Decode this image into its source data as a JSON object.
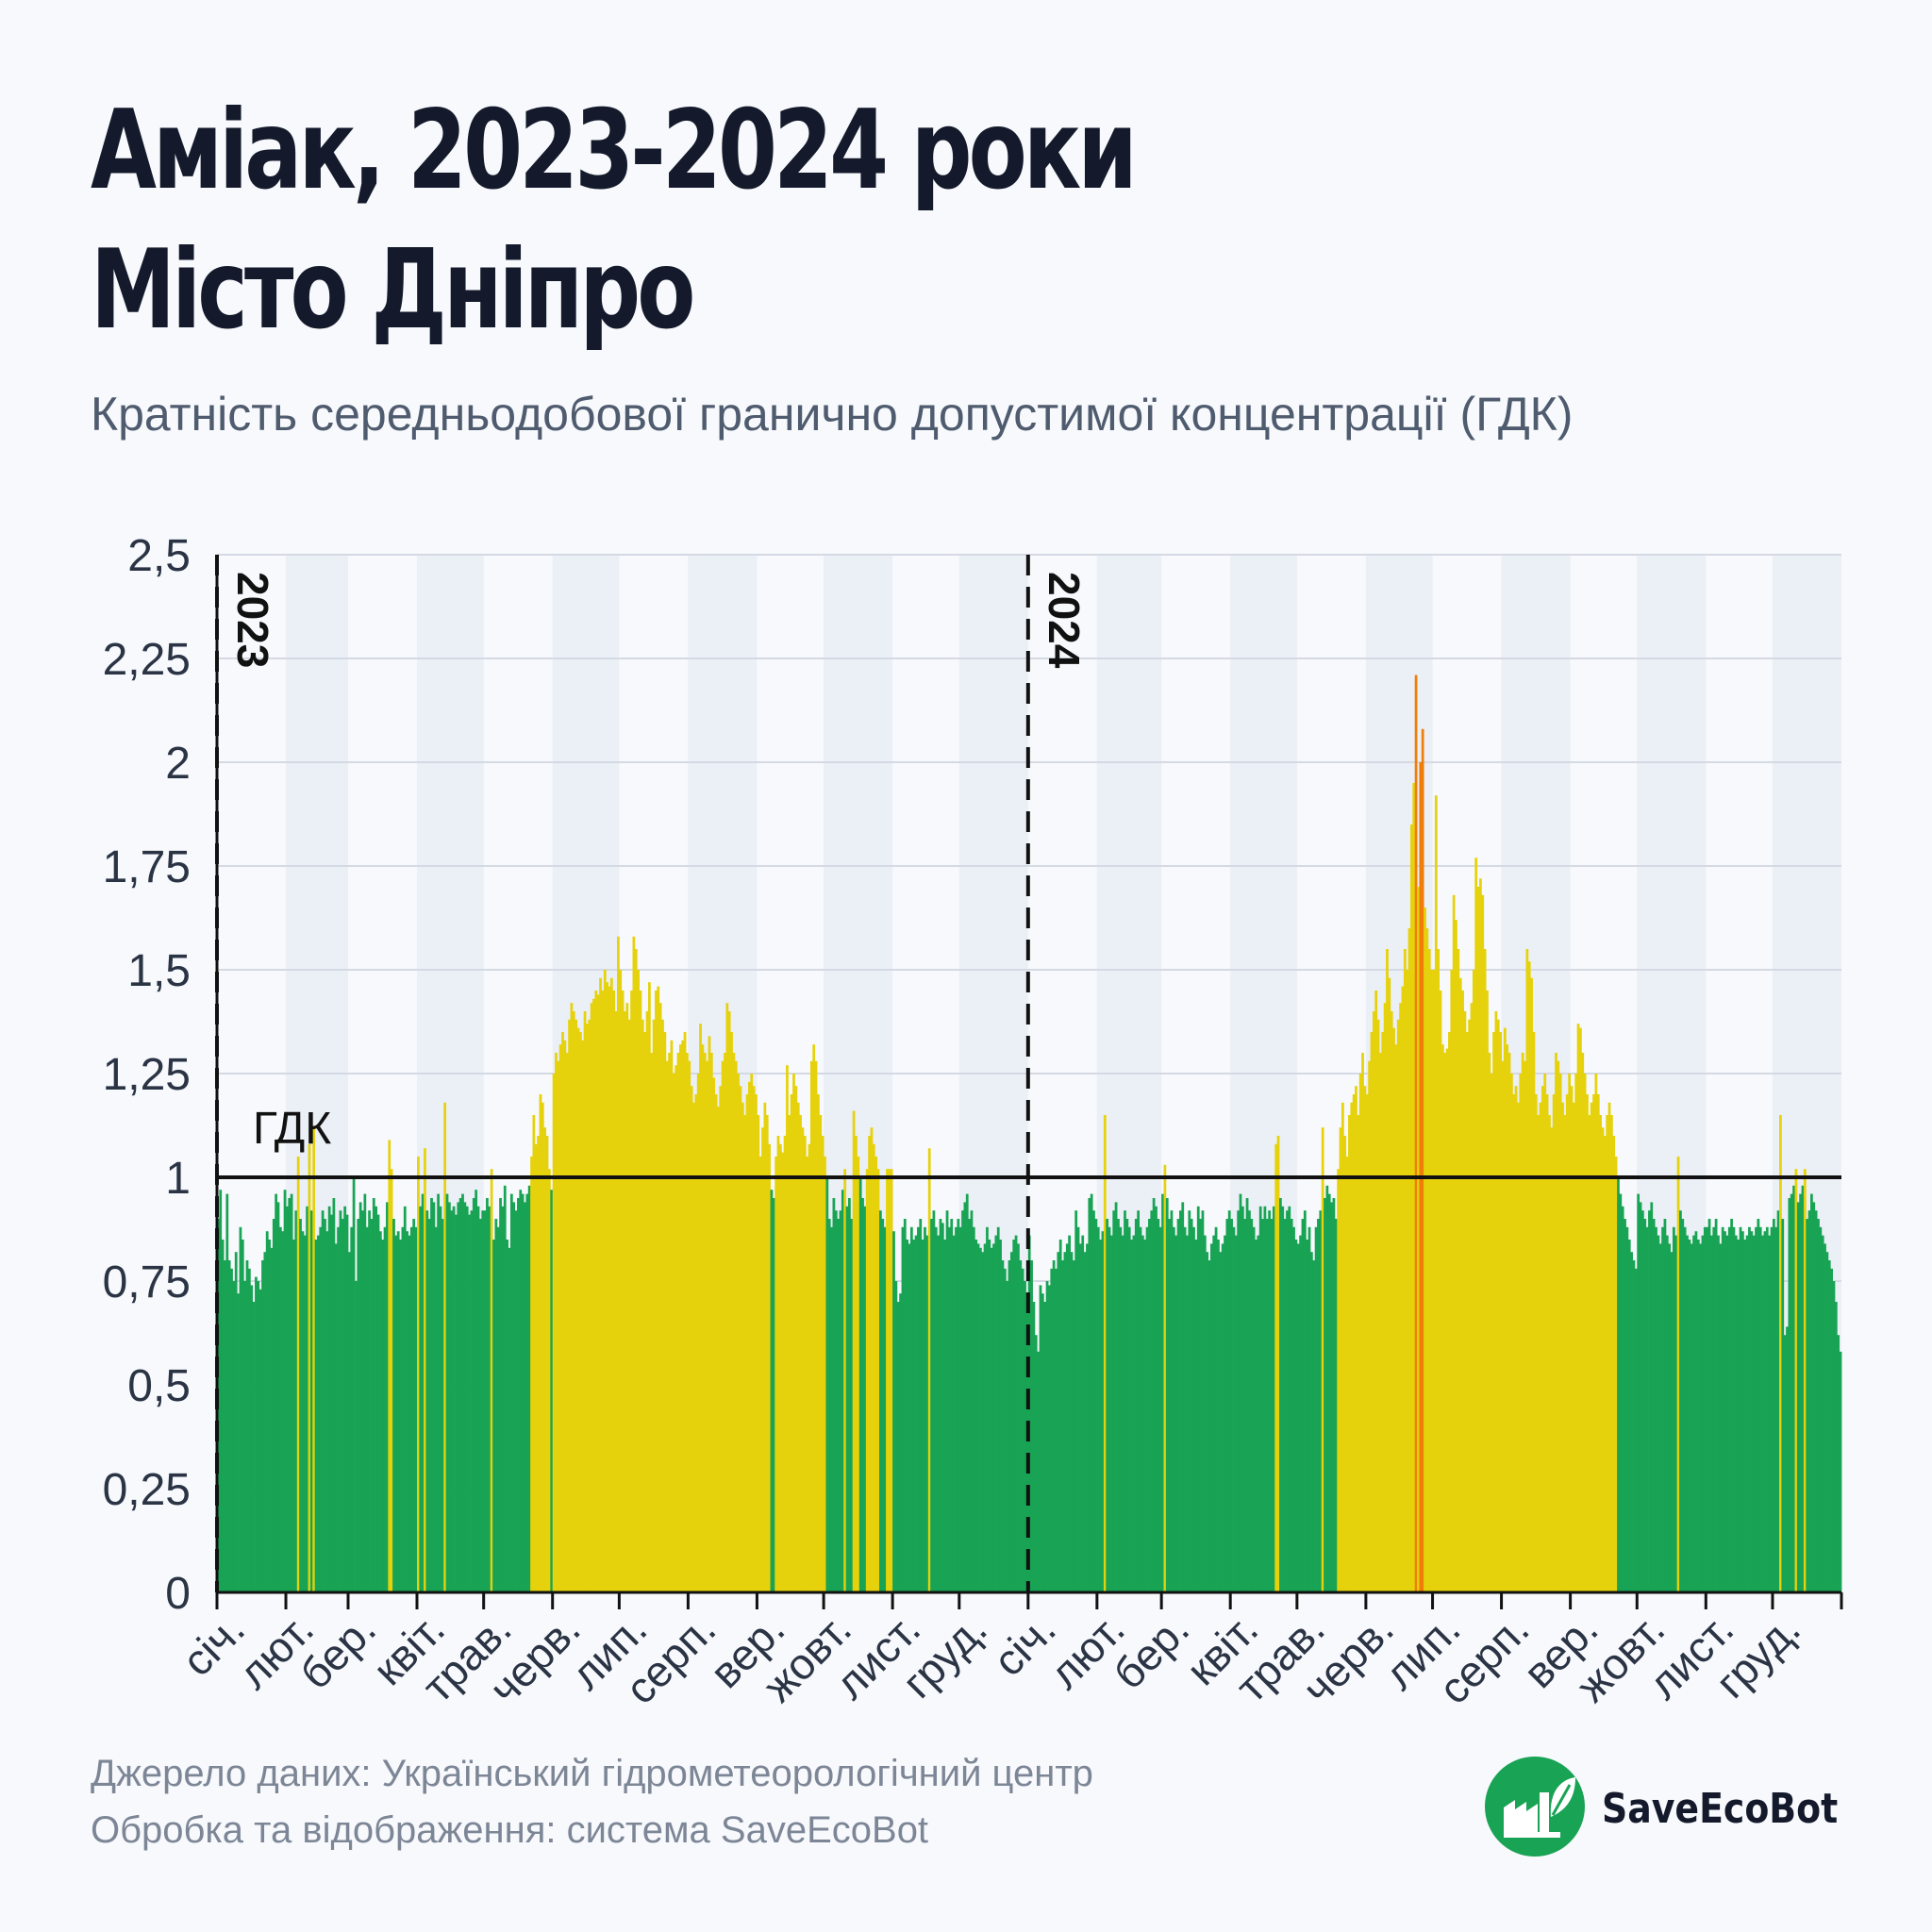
{
  "header": {
    "title_line1": "Аміак, 2023-2024 роки",
    "title_line2": "Місто Дніпро",
    "subtitle": "Кратність середньодобової гранично допустимої концентрації (ГДК)"
  },
  "footer": {
    "source": "Джерело даних: Український гідрометеорологічний центр",
    "processing": "Обробка та відображення: система SaveEcoBot"
  },
  "logo": {
    "text_part1": "Save",
    "text_part2": "EcoBot",
    "icon": "factory-leaf-icon"
  },
  "colors": {
    "below_limit": "#19a354",
    "above_limit": "#e6d20c",
    "high": "#f07d0a",
    "limit_line": "#111111",
    "year_divider": "#111111",
    "band_light": "#ebeff6",
    "grid": "#d4d9e3",
    "axis_text": "#2b3445",
    "logo_green": "#19a354"
  },
  "chart_data": {
    "type": "bar",
    "title": "Аміак, 2023-2024 роки",
    "subtitle": "Кратність середньодобової гранично допустимої концентрації (ГДК)",
    "xlabel": "",
    "ylabel": "",
    "ylim": [
      0,
      2.5
    ],
    "y_ticks": [
      0,
      0.25,
      0.5,
      0.75,
      1,
      1.25,
      1.5,
      1.75,
      2,
      2.25,
      2.5
    ],
    "y_tick_labels": [
      "0",
      "0,25",
      "0,5",
      "0,75",
      "1",
      "1,25",
      "1,5",
      "1,75",
      "2",
      "2,25",
      "2,5"
    ],
    "grid": true,
    "reference_line": {
      "value": 1,
      "label": "ГДК"
    },
    "years": [
      "2023",
      "2024"
    ],
    "month_labels": [
      "січ.",
      "лют.",
      "бер.",
      "квіт.",
      "трав.",
      "черв.",
      "лип.",
      "серп.",
      "вер.",
      "жовт.",
      "лист.",
      "груд."
    ],
    "color_rule": "value <= 1 → green; 1 < value < 2 → yellow; value >= 2 → orange",
    "monthly_values": [
      {
        "year": "2023",
        "month": "січ.",
        "values": [
          0.9,
          0.97,
          0.85,
          0.8,
          0.96,
          0.8,
          0.78,
          0.75,
          0.82,
          0.72,
          0.88,
          0.85,
          0.75,
          0.8,
          0.78,
          0.74,
          0.7,
          0.76,
          0.75,
          0.73,
          0.8,
          0.82,
          0.87,
          0.85,
          0.83,
          0.9,
          0.96,
          0.94,
          0.88,
          0.87,
          0.97
        ]
      },
      {
        "year": "2023",
        "month": "лют.",
        "values": [
          0.93,
          0.95,
          0.96,
          0.85,
          0.92,
          1.05,
          0.9,
          0.87,
          0.86,
          0.93,
          1.08,
          0.92,
          1.12,
          0.85,
          0.86,
          0.88,
          0.92,
          0.9,
          0.87,
          0.93,
          0.91,
          0.95,
          0.84,
          0.88,
          0.92,
          0.9,
          0.93,
          0.91
        ]
      },
      {
        "year": "2023",
        "month": "бер.",
        "values": [
          0.82,
          0.88,
          1.0,
          0.75,
          0.9,
          0.94,
          0.92,
          0.96,
          0.88,
          0.92,
          0.9,
          0.95,
          0.93,
          0.91,
          0.87,
          0.85,
          0.88,
          0.94,
          1.09,
          1.02,
          0.9,
          0.86,
          0.87,
          0.85,
          0.88,
          0.93,
          0.87,
          0.86,
          0.88,
          0.9,
          0.88
        ]
      },
      {
        "year": "2023",
        "month": "квіт.",
        "values": [
          1.05,
          0.93,
          0.96,
          1.07,
          0.92,
          0.9,
          0.95,
          0.94,
          0.88,
          0.96,
          0.93,
          0.9,
          1.18,
          0.96,
          0.94,
          0.92,
          0.93,
          0.91,
          0.94,
          0.95,
          0.96,
          0.94,
          0.93,
          0.91,
          0.92,
          0.95,
          0.97,
          0.93,
          0.9,
          0.92
        ]
      },
      {
        "year": "2023",
        "month": "трав.",
        "values": [
          0.92,
          0.95,
          0.93,
          1.02,
          0.85,
          0.9,
          0.88,
          0.95,
          0.93,
          0.98,
          0.85,
          0.83,
          0.96,
          0.94,
          0.92,
          0.95,
          0.97,
          0.96,
          0.94,
          0.96,
          0.98,
          1.05,
          1.15,
          1.08,
          1.1,
          1.2,
          1.18,
          1.12,
          1.1,
          1.02,
          0.97
        ]
      },
      {
        "year": "2023",
        "month": "черв.",
        "values": [
          1.25,
          1.3,
          1.28,
          1.32,
          1.35,
          1.33,
          1.3,
          1.38,
          1.42,
          1.4,
          1.38,
          1.36,
          1.35,
          1.33,
          1.4,
          1.37,
          1.38,
          1.42,
          1.43,
          1.45,
          1.44,
          1.48,
          1.45,
          1.5,
          1.47,
          1.46,
          1.48,
          1.45,
          1.4,
          1.58
        ]
      },
      {
        "year": "2023",
        "month": "лип.",
        "values": [
          1.5,
          1.45,
          1.4,
          1.42,
          1.38,
          1.45,
          1.58,
          1.55,
          1.5,
          1.45,
          1.38,
          1.35,
          1.4,
          1.47,
          1.3,
          1.38,
          1.45,
          1.46,
          1.42,
          1.38,
          1.35,
          1.28,
          1.3,
          1.33,
          1.25,
          1.27,
          1.3,
          1.32,
          1.33,
          1.35,
          1.3
        ]
      },
      {
        "year": "2023",
        "month": "серп.",
        "values": [
          1.28,
          1.22,
          1.18,
          1.2,
          1.25,
          1.37,
          1.32,
          1.3,
          1.28,
          1.34,
          1.3,
          1.24,
          1.2,
          1.17,
          1.22,
          1.28,
          1.3,
          1.42,
          1.4,
          1.35,
          1.3,
          1.28,
          1.25,
          1.22,
          1.18,
          1.15,
          1.2,
          1.23,
          1.25,
          1.22,
          1.2
        ]
      },
      {
        "year": "2023",
        "month": "вер.",
        "values": [
          1.15,
          1.05,
          1.12,
          1.18,
          1.15,
          1.08,
          0.97,
          0.95,
          1.05,
          1.1,
          1.08,
          1.06,
          1.1,
          1.27,
          1.15,
          1.2,
          1.25,
          1.22,
          1.18,
          1.15,
          1.12,
          1.1,
          1.05,
          1.08,
          1.28,
          1.32,
          1.28,
          1.2,
          1.15,
          1.1
        ]
      },
      {
        "year": "2023",
        "month": "жовт.",
        "values": [
          1.05,
          1.0,
          0.9,
          0.88,
          0.95,
          0.92,
          0.9,
          0.92,
          0.97,
          1.02,
          0.93,
          0.95,
          0.9,
          1.16,
          1.1,
          1.05,
          1.0,
          0.95,
          0.93,
          1.02,
          1.1,
          1.12,
          1.08,
          1.05,
          1.02,
          0.92,
          0.9,
          0.88,
          1.02,
          1.02,
          1.02
        ]
      },
      {
        "year": "2023",
        "month": "лист.",
        "values": [
          0.87,
          0.75,
          0.7,
          0.72,
          0.88,
          0.9,
          0.85,
          0.84,
          0.88,
          0.85,
          0.86,
          0.88,
          0.9,
          0.85,
          0.88,
          0.86,
          1.07,
          0.9,
          0.92,
          0.88,
          0.86,
          0.9,
          0.89,
          0.85,
          0.92,
          0.88,
          0.9,
          0.86,
          0.88,
          0.9
        ]
      },
      {
        "year": "2023",
        "month": "груд.",
        "values": [
          0.88,
          0.92,
          0.94,
          0.96,
          0.9,
          0.92,
          0.88,
          0.85,
          0.84,
          0.83,
          0.82,
          0.84,
          0.88,
          0.85,
          0.83,
          0.84,
          0.86,
          0.88,
          0.85,
          0.8,
          0.78,
          0.75,
          0.8,
          0.82,
          0.85,
          0.86,
          0.84,
          0.8,
          0.78,
          0.75,
          0.72
        ]
      },
      {
        "year": "2024",
        "month": "січ.",
        "values": [
          0.86,
          0.8,
          0.7,
          0.62,
          0.58,
          0.74,
          0.72,
          0.7,
          0.75,
          0.74,
          0.78,
          0.8,
          0.78,
          0.82,
          0.85,
          0.8,
          0.82,
          0.84,
          0.86,
          0.82,
          0.8,
          0.92,
          0.88,
          0.84,
          0.86,
          0.82,
          0.84,
          0.95,
          0.96,
          0.92,
          0.9
        ]
      },
      {
        "year": "2024",
        "month": "лют.",
        "values": [
          0.88,
          0.85,
          0.87,
          1.15,
          0.9,
          0.88,
          0.86,
          0.92,
          0.94,
          0.9,
          0.88,
          0.86,
          0.92,
          0.9,
          0.88,
          0.85,
          0.86,
          0.9,
          0.92,
          0.88,
          0.86,
          0.85,
          0.88,
          0.9,
          0.92,
          0.95,
          0.93,
          0.9,
          0.88
        ]
      },
      {
        "year": "2024",
        "month": "бер.",
        "values": [
          0.96,
          1.03,
          0.95,
          0.9,
          0.92,
          0.88,
          0.86,
          0.9,
          0.92,
          0.94,
          0.88,
          0.86,
          0.92,
          0.9,
          0.88,
          0.85,
          0.93,
          0.9,
          0.92,
          0.86,
          0.82,
          0.8,
          0.84,
          0.86,
          0.88,
          0.85,
          0.82,
          0.84,
          0.86,
          0.9,
          0.92
        ]
      },
      {
        "year": "2024",
        "month": "квіт.",
        "values": [
          0.9,
          0.88,
          0.86,
          0.92,
          0.96,
          0.93,
          0.9,
          0.95,
          0.92,
          0.9,
          0.88,
          0.85,
          0.86,
          0.93,
          0.9,
          0.93,
          0.9,
          0.92,
          0.9,
          0.93,
          1.08,
          1.1,
          0.95,
          0.93,
          0.9,
          0.92,
          0.93,
          0.9,
          0.88,
          0.85
        ]
      },
      {
        "year": "2024",
        "month": "трав.",
        "values": [
          0.84,
          0.86,
          0.9,
          0.92,
          0.85,
          0.88,
          0.82,
          0.8,
          0.88,
          0.9,
          0.92,
          1.12,
          0.95,
          0.98,
          0.96,
          0.94,
          0.95,
          0.9,
          1.02,
          1.12,
          1.18,
          1.1,
          1.05,
          1.15,
          1.18,
          1.2,
          1.22,
          1.15,
          1.25,
          1.3,
          1.22
        ]
      },
      {
        "year": "2024",
        "month": "черв.",
        "values": [
          1.2,
          1.28,
          1.35,
          1.4,
          1.45,
          1.38,
          1.3,
          1.35,
          1.42,
          1.55,
          1.48,
          1.4,
          1.36,
          1.32,
          1.38,
          1.42,
          1.46,
          1.55,
          1.5,
          1.6,
          1.85,
          1.95,
          2.21,
          1.7,
          2.0,
          2.08,
          1.65,
          1.6,
          1.55,
          1.5
        ]
      },
      {
        "year": "2024",
        "month": "лип.",
        "values": [
          1.5,
          1.92,
          1.55,
          1.45,
          1.32,
          1.3,
          1.31,
          1.35,
          1.5,
          1.68,
          1.62,
          1.55,
          1.48,
          1.45,
          1.4,
          1.35,
          1.38,
          1.42,
          1.5,
          1.77,
          1.7,
          1.72,
          1.68,
          1.55,
          1.45,
          1.3,
          1.25,
          1.35,
          1.4,
          1.38,
          1.35
        ]
      },
      {
        "year": "2024",
        "month": "серп.",
        "values": [
          1.28,
          1.36,
          1.32,
          1.3,
          1.25,
          1.2,
          1.22,
          1.18,
          1.25,
          1.3,
          1.28,
          1.55,
          1.52,
          1.48,
          1.35,
          1.2,
          1.15,
          1.18,
          1.22,
          1.25,
          1.2,
          1.15,
          1.12,
          1.2,
          1.3,
          1.28,
          1.25,
          1.18,
          1.15,
          1.2,
          1.25
        ]
      },
      {
        "year": "2024",
        "month": "вер.",
        "values": [
          1.22,
          1.18,
          1.25,
          1.37,
          1.36,
          1.3,
          1.25,
          1.2,
          1.15,
          1.18,
          1.2,
          1.25,
          1.2,
          1.15,
          1.12,
          1.1,
          1.15,
          1.18,
          1.15,
          1.1,
          1.05,
          1.0,
          0.96,
          0.93,
          0.9,
          0.88,
          0.85,
          0.82,
          0.8,
          0.78
        ]
      },
      {
        "year": "2024",
        "month": "жовт.",
        "values": [
          0.96,
          0.94,
          0.92,
          0.9,
          0.88,
          0.92,
          0.94,
          0.9,
          0.88,
          0.86,
          0.84,
          0.88,
          0.9,
          0.86,
          0.84,
          0.82,
          0.88,
          0.86,
          1.05,
          0.92,
          0.9,
          0.88,
          0.86,
          0.85,
          0.84,
          0.86,
          0.87,
          0.85,
          0.84,
          0.86,
          0.88
        ]
      },
      {
        "year": "2024",
        "month": "лист.",
        "values": [
          0.88,
          0.9,
          0.86,
          0.88,
          0.9,
          0.86,
          0.84,
          0.88,
          0.87,
          0.86,
          0.88,
          0.9,
          0.88,
          0.86,
          0.85,
          0.88,
          0.87,
          0.85,
          0.86,
          0.88,
          0.87,
          0.86,
          0.88,
          0.9,
          0.88,
          0.86,
          0.87,
          0.88,
          0.86,
          0.88
        ]
      },
      {
        "year": "2024",
        "month": "груд.",
        "values": [
          0.9,
          0.88,
          0.92,
          1.15,
          0.9,
          0.62,
          0.64,
          0.95,
          0.96,
          0.98,
          1.02,
          0.94,
          0.96,
          0.98,
          1.02,
          0.9,
          0.92,
          0.96,
          0.94,
          0.92,
          0.9,
          0.88,
          0.86,
          0.84,
          0.82,
          0.8,
          0.78,
          0.75,
          0.7,
          0.62,
          0.58
        ]
      }
    ]
  }
}
